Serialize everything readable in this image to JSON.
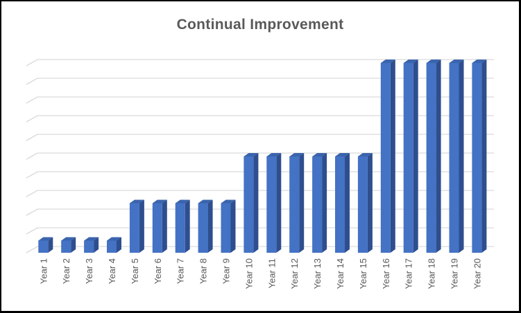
{
  "chart_data": {
    "type": "bar",
    "style": "3d-column",
    "title": "Continual Improvement",
    "categories": [
      "Year 1",
      "Year 2",
      "Year 3",
      "Year 4",
      "Year 5",
      "Year 6",
      "Year 7",
      "Year 8",
      "Year 9",
      "Year 10",
      "Year 11",
      "Year 12",
      "Year 13",
      "Year 14",
      "Year 15",
      "Year 16",
      "Year 17",
      "Year 18",
      "Year 19",
      "Year 20"
    ],
    "values": [
      1,
      1,
      1,
      1,
      5,
      5,
      5,
      5,
      5,
      10,
      10,
      10,
      10,
      10,
      10,
      20,
      20,
      20,
      20,
      20
    ],
    "xlabel": "",
    "ylabel": "",
    "ylim": [
      0,
      20
    ],
    "gridline_step": 2,
    "y_axis_labels_visible": false,
    "grid": true,
    "legend": "none",
    "x_tick_rotation": 90,
    "colors": {
      "bar_front": "#4472C4",
      "bar_side": "#2E4E8E",
      "bar_top": "#3A64AD",
      "gridline": "#D9D9D9",
      "title_text": "#595959",
      "axis_text": "#595959",
      "background": "#FFFFFF",
      "frame_border": "#000000"
    }
  }
}
